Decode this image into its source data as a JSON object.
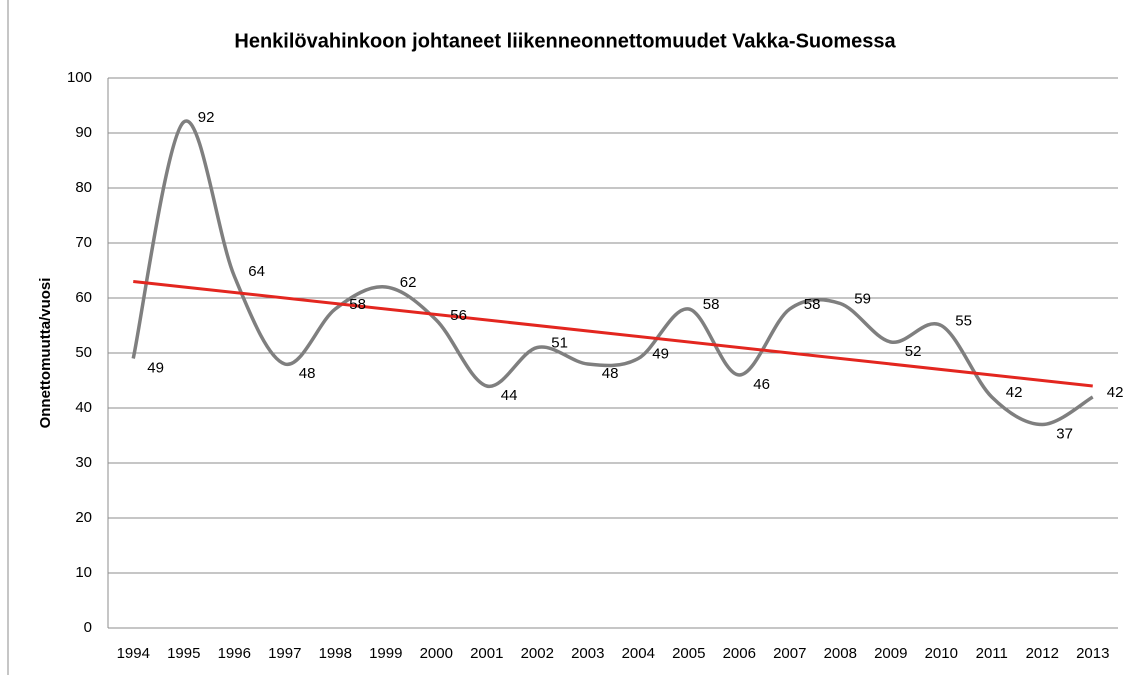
{
  "chart_data": {
    "type": "line",
    "title": "Henkilövahinkoon johtaneet liikenneonnettomuudet Vakka-Suomessa",
    "y_label": "Onnettomuutta/vuosi",
    "categories": [
      "1994",
      "1995",
      "1996",
      "1997",
      "1998",
      "1999",
      "2000",
      "2001",
      "2002",
      "2003",
      "2004",
      "2005",
      "2006",
      "2007",
      "2008",
      "2009",
      "2010",
      "2011",
      "2012",
      "2013"
    ],
    "series": [
      {
        "color": "#7f7f7f",
        "values": [
          49,
          92,
          64,
          48,
          58,
          62,
          56,
          44,
          51,
          48,
          49,
          58,
          46,
          58,
          59,
          52,
          55,
          42,
          37,
          42
        ]
      }
    ],
    "trendline": {
      "color": "#e3261f",
      "values": [
        63,
        44
      ]
    },
    "ylim": [
      0,
      100
    ],
    "yticks": [
      0,
      10,
      20,
      30,
      40,
      50,
      60,
      70,
      80,
      90,
      100
    ],
    "grid": true,
    "smooth": true
  }
}
